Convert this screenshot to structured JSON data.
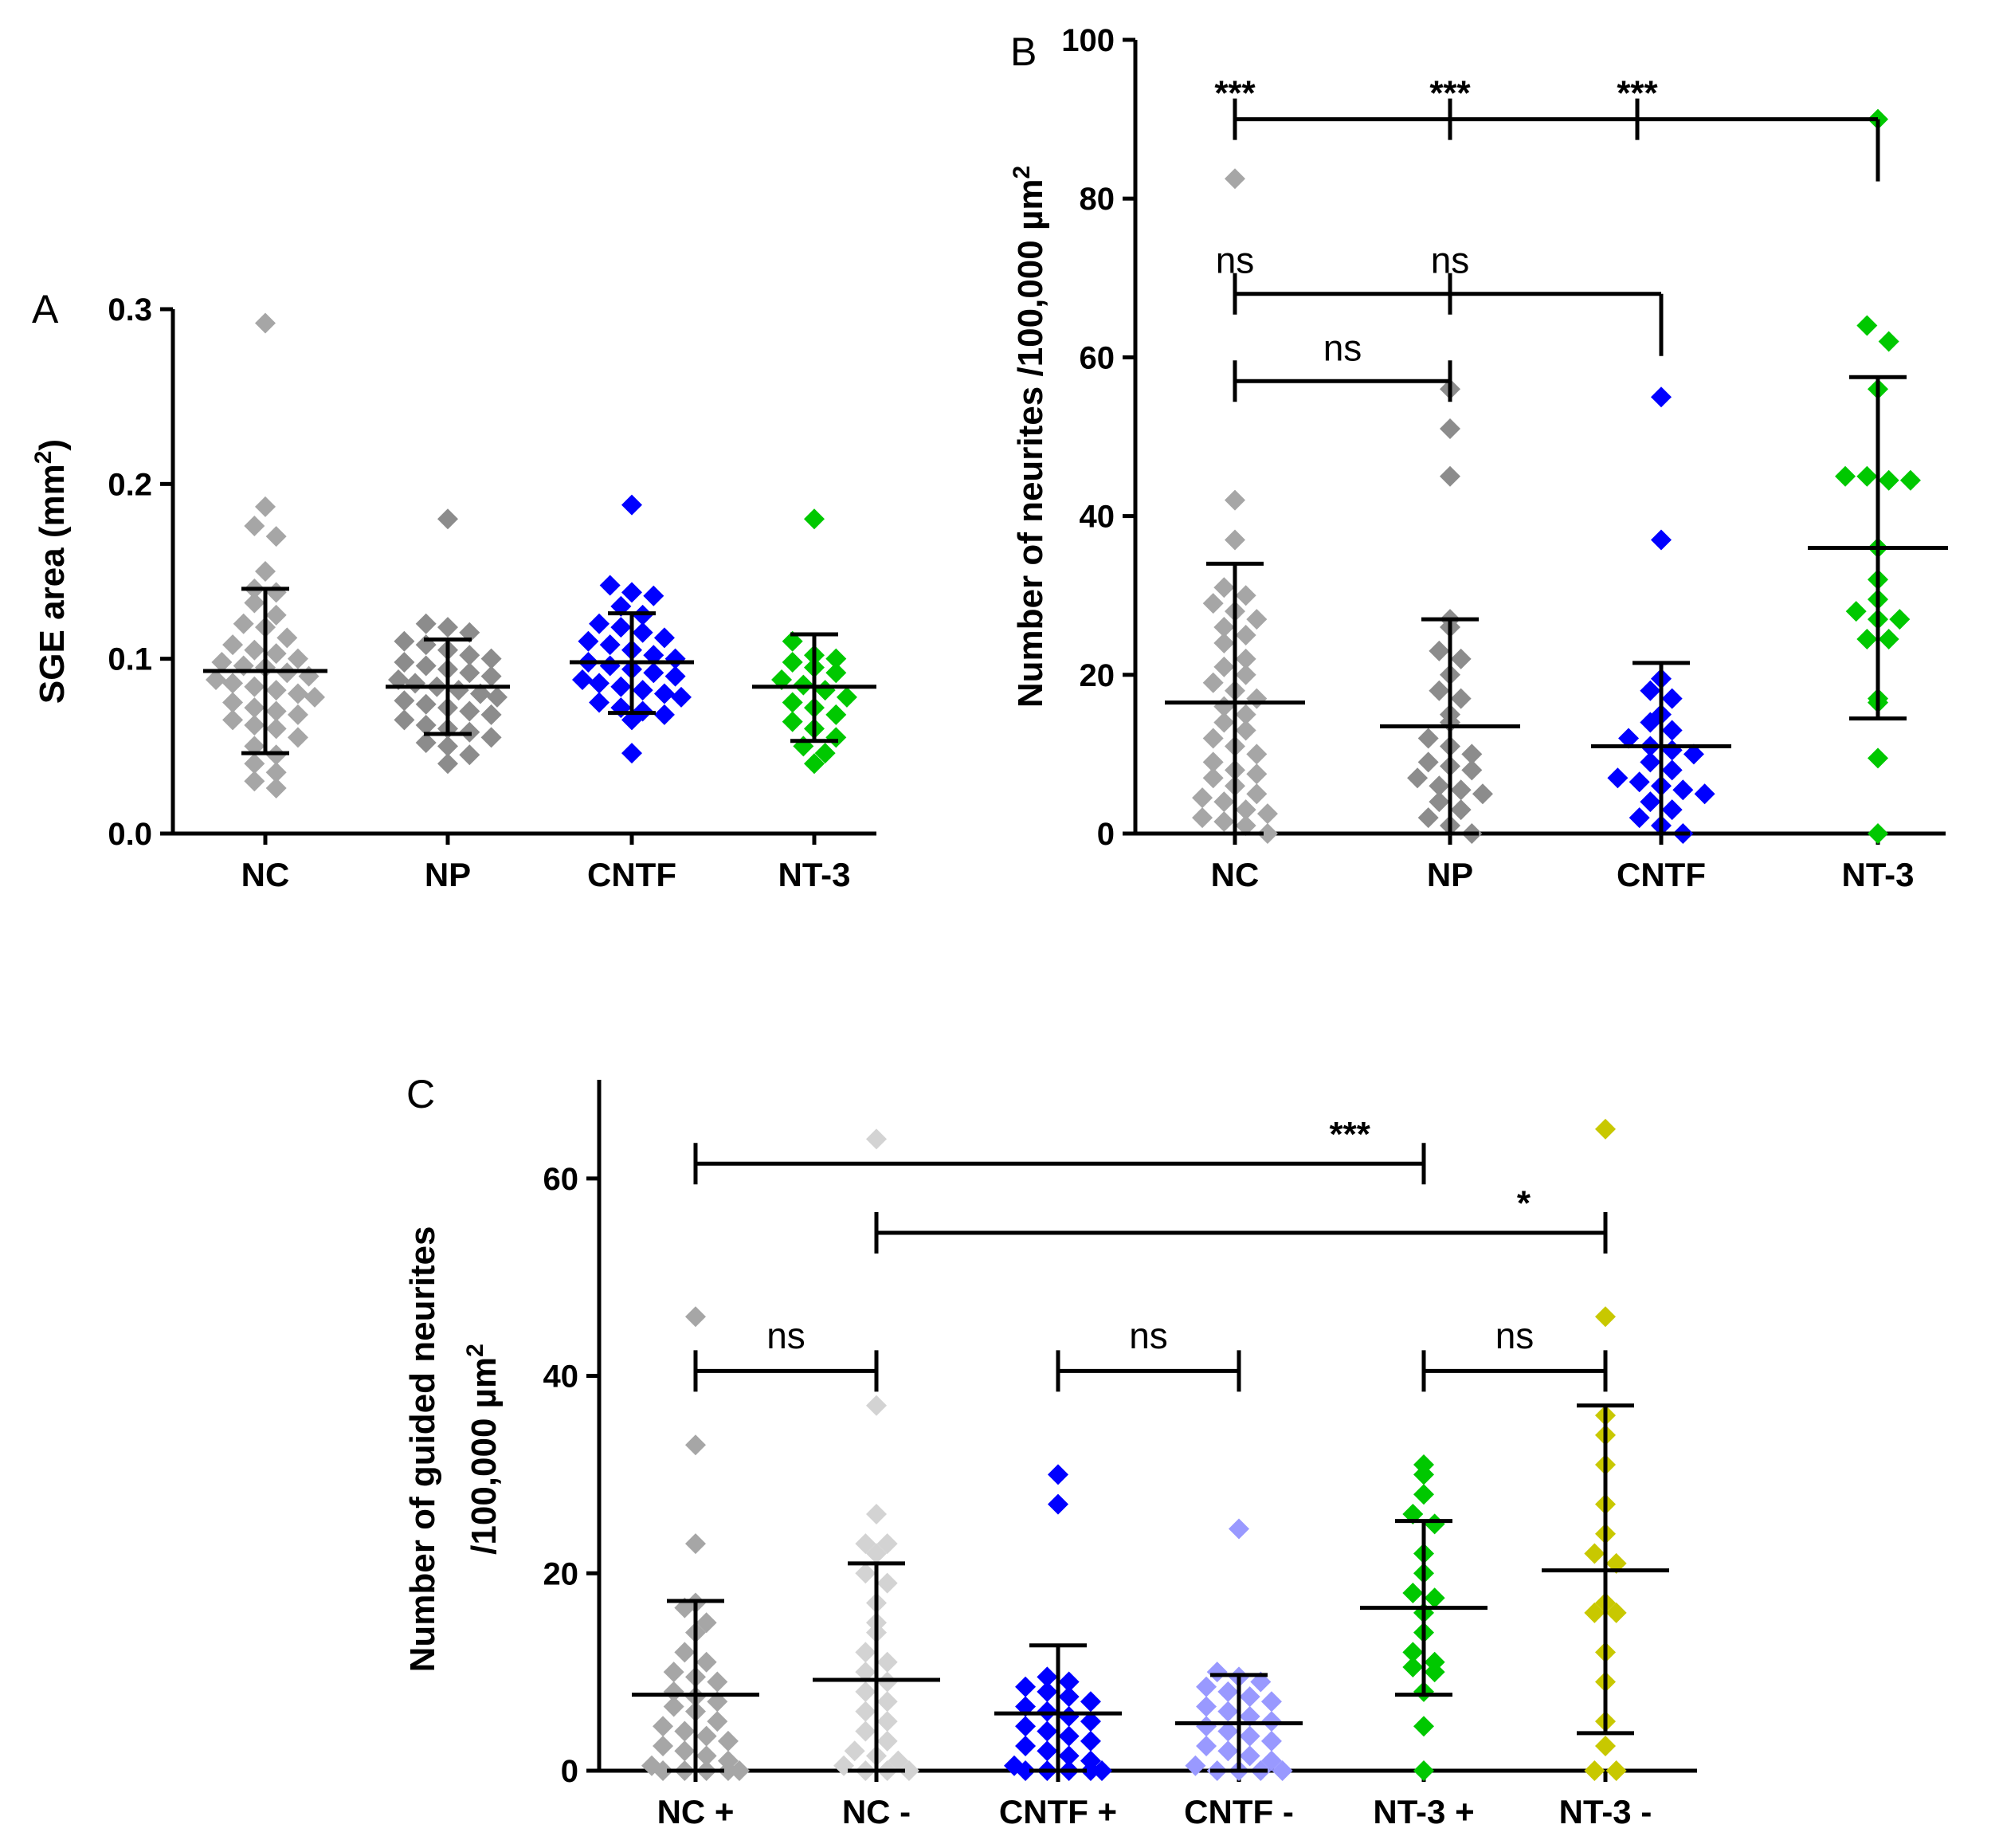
{
  "chart_data": [
    {
      "panel": "A",
      "type": "scatter",
      "ylabel": "SGE area (mm²)",
      "ylabel_main": "SGE area (mm",
      "ylabel_sup": "2",
      "ylabel_end": ")",
      "ylim": [
        0,
        0.3
      ],
      "yticks": [
        0.0,
        0.1,
        0.2,
        0.3
      ],
      "ytick_labels": [
        "0.0",
        "0.1",
        "0.2",
        "0.3"
      ],
      "categories": [
        "NC",
        "NP",
        "CNTF",
        "NT-3"
      ],
      "groups": [
        {
          "name": "NC",
          "color": "#a6a6a6",
          "mean": 0.093,
          "sd_low": 0.046,
          "sd_high": 0.14,
          "points": [
            0.292,
            0.187,
            0.176,
            0.17,
            0.15,
            0.14,
            0.138,
            0.132,
            0.125,
            0.12,
            0.118,
            0.112,
            0.108,
            0.105,
            0.103,
            0.1,
            0.098,
            0.096,
            0.095,
            0.092,
            0.09,
            0.088,
            0.086,
            0.084,
            0.082,
            0.08,
            0.078,
            0.075,
            0.072,
            0.07,
            0.068,
            0.065,
            0.062,
            0.06,
            0.055,
            0.05,
            0.045,
            0.04,
            0.035,
            0.03,
            0.026
          ]
        },
        {
          "name": "NP",
          "color": "#8c8c8c",
          "mean": 0.084,
          "sd_low": 0.057,
          "sd_high": 0.111,
          "points": [
            0.18,
            0.12,
            0.118,
            0.115,
            0.11,
            0.108,
            0.105,
            0.102,
            0.1,
            0.098,
            0.096,
            0.094,
            0.092,
            0.09,
            0.088,
            0.086,
            0.084,
            0.082,
            0.08,
            0.078,
            0.076,
            0.074,
            0.072,
            0.07,
            0.068,
            0.065,
            0.062,
            0.06,
            0.058,
            0.055,
            0.052,
            0.05,
            0.045,
            0.04
          ]
        },
        {
          "name": "CNTF",
          "color": "#0000ff",
          "mean": 0.098,
          "sd_low": 0.069,
          "sd_high": 0.126,
          "points": [
            0.188,
            0.142,
            0.138,
            0.136,
            0.13,
            0.125,
            0.12,
            0.118,
            0.115,
            0.112,
            0.11,
            0.108,
            0.105,
            0.102,
            0.1,
            0.098,
            0.096,
            0.094,
            0.092,
            0.09,
            0.088,
            0.086,
            0.084,
            0.082,
            0.08,
            0.078,
            0.075,
            0.072,
            0.07,
            0.068,
            0.065,
            0.046
          ]
        },
        {
          "name": "NT-3",
          "color": "#00c800",
          "mean": 0.084,
          "sd_low": 0.053,
          "sd_high": 0.114,
          "points": [
            0.18,
            0.11,
            0.102,
            0.1,
            0.098,
            0.095,
            0.092,
            0.088,
            0.085,
            0.082,
            0.078,
            0.075,
            0.072,
            0.068,
            0.064,
            0.06,
            0.055,
            0.05,
            0.046,
            0.04
          ]
        }
      ]
    },
    {
      "panel": "B",
      "type": "scatter",
      "ylabel": "Number of neurites /100,000 µm²",
      "ylabel_main": "Number of neurites /100,000 µm",
      "ylabel_sup": "2",
      "ylabel_end": "",
      "ylim": [
        0,
        100
      ],
      "yticks": [
        0,
        20,
        40,
        60,
        80,
        100
      ],
      "ytick_labels": [
        "0",
        "20",
        "40",
        "60",
        "80",
        "100"
      ],
      "categories": [
        "NC",
        "NP",
        "CNTF",
        "NT-3"
      ],
      "groups": [
        {
          "name": "NC",
          "color": "#a6a6a6",
          "mean": 16.5,
          "sd_low": 0,
          "sd_high": 34,
          "points": [
            82.5,
            42,
            37,
            31,
            30,
            29,
            28,
            27,
            26,
            25,
            24,
            22,
            21,
            20,
            19,
            18,
            17,
            16,
            15,
            14,
            13,
            12,
            11,
            10,
            9,
            8,
            7.5,
            7,
            6,
            5,
            4.5,
            4,
            3,
            2.5,
            2,
            1.5,
            1,
            0
          ]
        },
        {
          "name": "NP",
          "color": "#8c8c8c",
          "mean": 13.5,
          "sd_low": 0,
          "sd_high": 27,
          "points": [
            56,
            51,
            45,
            27,
            26,
            23,
            22,
            20,
            18,
            17,
            15,
            14,
            12,
            11,
            10,
            9,
            8.5,
            8,
            7,
            6,
            5.5,
            5,
            4,
            3,
            2,
            1,
            0
          ]
        },
        {
          "name": "CNTF",
          "color": "#0000ff",
          "mean": 11,
          "sd_low": 0,
          "sd_high": 21.5,
          "points": [
            55,
            37,
            19.5,
            18,
            17,
            15,
            14,
            13,
            12,
            11,
            10.5,
            10,
            9,
            8,
            7,
            6.5,
            6,
            5.5,
            5,
            4,
            3,
            2,
            1,
            0
          ]
        },
        {
          "name": "NT-3",
          "color": "#00c800",
          "mean": 36,
          "sd_low": 14.5,
          "sd_high": 57.5,
          "points": [
            90,
            64,
            62,
            56,
            45,
            45,
            44.5,
            44.5,
            36,
            32,
            29.5,
            28,
            27,
            27,
            24.5,
            24.5,
            17,
            16.5,
            9.5,
            0
          ]
        }
      ],
      "comparisons": [
        {
          "label": "***",
          "level": 90,
          "from": 0,
          "to": 3,
          "ticks": [
            1,
            2
          ],
          "label_at": [
            0,
            1,
            2
          ]
        },
        {
          "label": "ns",
          "level": 68,
          "from": 0,
          "to": 2,
          "ticks": [
            1
          ],
          "label_at": [
            0,
            1
          ]
        },
        {
          "label": "ns",
          "level": 57,
          "from": 0,
          "to": 1,
          "ticks": [],
          "label_at": [
            0.5
          ]
        }
      ]
    },
    {
      "panel": "C",
      "type": "scatter",
      "ylabel_line1": "Number of guided neurites",
      "ylabel": "/100,000 µm²",
      "ylabel_main": "/100,000 µm",
      "ylabel_sup": "2",
      "ylabel_end": "",
      "ylim": [
        0,
        70
      ],
      "yticks": [
        0,
        20,
        40,
        60
      ],
      "ytick_labels": [
        "0",
        "20",
        "40",
        "60"
      ],
      "categories": [
        "NC +",
        "NC -",
        "CNTF +",
        "CNTF -",
        "NT-3 +",
        "NT-3 -"
      ],
      "groups": [
        {
          "name": "NC +",
          "color": "#a6a6a6",
          "mean": 7.7,
          "sd_low": 0,
          "sd_high": 17.2,
          "points": [
            46,
            33,
            23,
            17,
            16.5,
            15,
            14,
            12,
            11,
            10,
            9.5,
            9,
            8,
            7.5,
            7,
            6.5,
            6,
            5,
            4.5,
            4,
            3.5,
            3,
            2.5,
            2,
            1.5,
            1,
            0.5,
            0,
            0,
            0,
            0,
            0
          ]
        },
        {
          "name": "NC -",
          "color": "#d3d3d3",
          "mean": 9.2,
          "sd_low": 0,
          "sd_high": 21,
          "points": [
            64,
            37,
            26,
            23,
            23,
            22,
            20,
            19,
            17,
            15,
            14,
            12,
            11,
            10,
            9,
            8,
            7,
            6,
            5,
            4,
            3,
            2,
            1.5,
            1,
            0.5,
            0,
            0,
            0
          ]
        },
        {
          "name": "CNTF +",
          "color": "#0000ff",
          "mean": 5.8,
          "sd_low": 0,
          "sd_high": 12.7,
          "points": [
            30,
            27,
            9.5,
            9,
            8.5,
            8,
            7.5,
            7,
            6.5,
            6,
            5.5,
            5,
            4.5,
            4,
            3.5,
            3,
            2.5,
            2,
            1.5,
            1,
            0.5,
            0,
            0,
            0,
            0,
            0
          ]
        },
        {
          "name": "CNTF -",
          "color": "#9999ff",
          "mean": 4.8,
          "sd_low": 0,
          "sd_high": 9.7,
          "points": [
            24.5,
            10,
            9.5,
            9,
            8.5,
            8,
            7.5,
            7,
            6.5,
            6,
            5.5,
            5,
            4.5,
            4,
            3.5,
            3,
            2.5,
            2,
            1.5,
            1,
            0.5,
            0,
            0,
            0,
            0
          ]
        },
        {
          "name": "NT-3 +",
          "color": "#00c800",
          "mean": 16.5,
          "sd_low": 7.7,
          "sd_high": 25.3,
          "points": [
            31,
            30,
            28,
            26,
            25,
            22,
            20,
            18,
            17.5,
            16,
            14,
            12,
            11,
            10.5,
            10,
            8,
            4.5,
            0
          ]
        },
        {
          "name": "NT-3 -",
          "color": "#c8c800",
          "mean": 20.3,
          "sd_low": 3.8,
          "sd_high": 37,
          "points": [
            65,
            46,
            36,
            34,
            31,
            27,
            24,
            22,
            21,
            17,
            16,
            16,
            12,
            9,
            5,
            2.5,
            0,
            0
          ]
        }
      ],
      "comparisons": [
        {
          "label": "***",
          "level": 61.5,
          "from": 0,
          "to": 4,
          "label_x": 3.6,
          "label_above": 1.8
        },
        {
          "label": "*",
          "level": 54.5,
          "from": 1,
          "to": 5,
          "label_x": 4.55,
          "label_above": 1.8
        },
        {
          "label": "ns",
          "level": 40.5,
          "from": 0,
          "to": 1,
          "label_x": 0.5,
          "label_above": 2.3
        },
        {
          "label": "ns",
          "level": 40.5,
          "from": 2,
          "to": 3,
          "label_x": 2.5,
          "label_above": 2.3
        },
        {
          "label": "ns",
          "level": 40.5,
          "from": 4,
          "to": 5,
          "label_x": 4.5,
          "label_above": 2.3
        }
      ]
    }
  ]
}
